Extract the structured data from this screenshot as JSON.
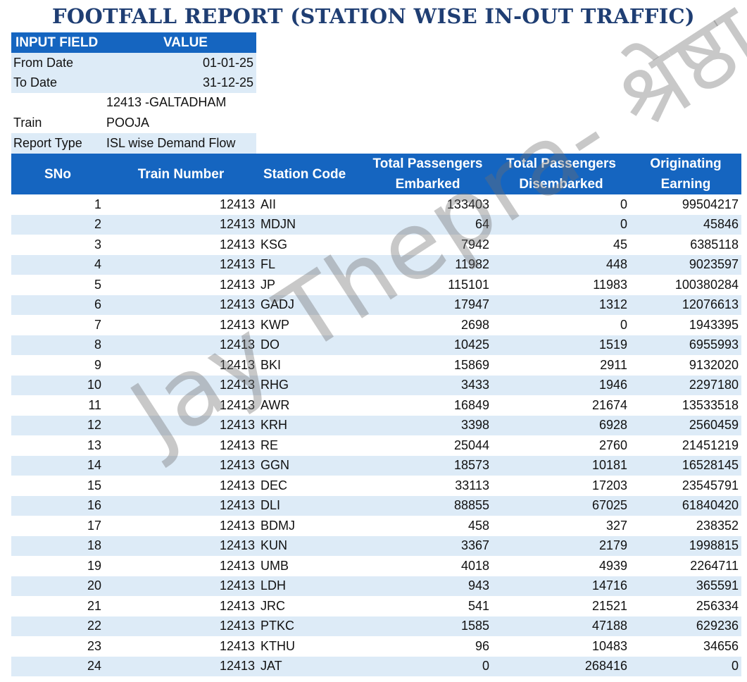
{
  "title": "FOOTFALL REPORT (STATION WISE IN-OUT TRAFFIC)",
  "inputs": {
    "header": {
      "field": "INPUT FIELD",
      "value": "VALUE"
    },
    "from_date": {
      "label": "From Date",
      "value": "01-01-25"
    },
    "to_date": {
      "label": "To Date",
      "value": "31-12-25"
    },
    "train": {
      "label": "Train",
      "value_line1": "12413 -GALTADHAM",
      "value_line2": "POOJA"
    },
    "report_type": {
      "label": "Report Type",
      "value": "ISL wise Demand Flow"
    }
  },
  "table": {
    "headers": {
      "sno": "SNo",
      "train_number": "Train Number",
      "station_code": "Station Code",
      "embarked_l1": "Total Passengers",
      "embarked_l2": "Embarked",
      "disembarked_l1": "Total Passengers",
      "disembarked_l2": "Disembarked",
      "earning_l1": "Originating",
      "earning_l2": "Earning"
    },
    "rows": [
      [
        "1",
        "12413",
        "AII",
        "133403",
        "0",
        "99504217"
      ],
      [
        "2",
        "12413",
        "MDJN",
        "64",
        "0",
        "45846"
      ],
      [
        "3",
        "12413",
        "KSG",
        "7942",
        "45",
        "6385118"
      ],
      [
        "4",
        "12413",
        "FL",
        "11982",
        "448",
        "9023597"
      ],
      [
        "5",
        "12413",
        "JP",
        "115101",
        "11983",
        "100380284"
      ],
      [
        "6",
        "12413",
        "GADJ",
        "17947",
        "1312",
        "12076613"
      ],
      [
        "7",
        "12413",
        "KWP",
        "2698",
        "0",
        "1943395"
      ],
      [
        "8",
        "12413",
        "DO",
        "10425",
        "1519",
        "6955993"
      ],
      [
        "9",
        "12413",
        "BKI",
        "15869",
        "2911",
        "9132020"
      ],
      [
        "10",
        "12413",
        "RHG",
        "3433",
        "1946",
        "2297180"
      ],
      [
        "11",
        "12413",
        "AWR",
        "16849",
        "21674",
        "13533518"
      ],
      [
        "12",
        "12413",
        "KRH",
        "3398",
        "6928",
        "2560459"
      ],
      [
        "13",
        "12413",
        "RE",
        "25044",
        "2760",
        "21451219"
      ],
      [
        "14",
        "12413",
        "GGN",
        "18573",
        "10181",
        "16528145"
      ],
      [
        "15",
        "12413",
        "DEC",
        "33113",
        "17203",
        "23545791"
      ],
      [
        "16",
        "12413",
        "DLI",
        "88855",
        "67025",
        "61840420"
      ],
      [
        "17",
        "12413",
        "BDMJ",
        "458",
        "327",
        "238352"
      ],
      [
        "18",
        "12413",
        "KUN",
        "3367",
        "2179",
        "1998815"
      ],
      [
        "19",
        "12413",
        "UMB",
        "4018",
        "4939",
        "2264711"
      ],
      [
        "20",
        "12413",
        "LDH",
        "943",
        "14716",
        "365591"
      ],
      [
        "21",
        "12413",
        "JRC",
        "541",
        "21521",
        "256334"
      ],
      [
        "22",
        "12413",
        "PTKC",
        "1585",
        "47188",
        "629236"
      ],
      [
        "23",
        "12413",
        "KTHU",
        "96",
        "10483",
        "34656"
      ],
      [
        "24",
        "12413",
        "JAT",
        "0",
        "268416",
        "0"
      ]
    ]
  },
  "watermark": "Jay Thepra- श्रेष्ठा"
}
